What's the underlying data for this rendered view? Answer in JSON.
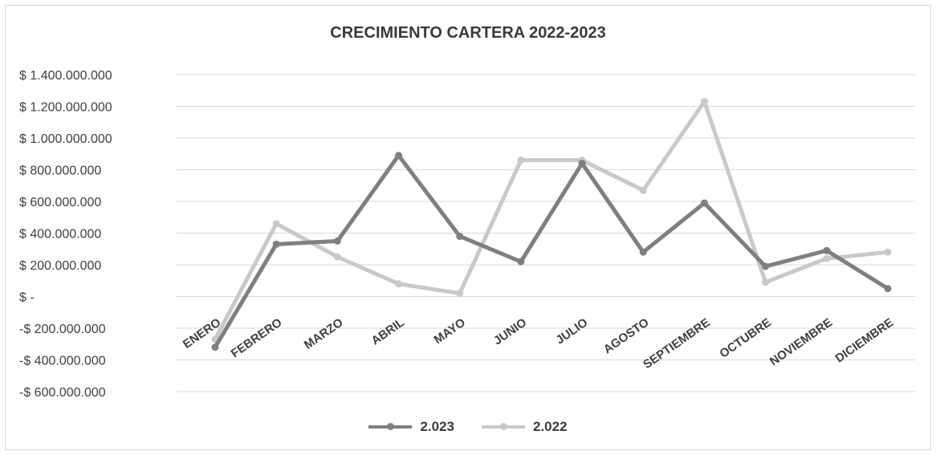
{
  "chart_data": {
    "type": "line",
    "title": "CRECIMIENTO CARTERA 2022-2023",
    "categories": [
      "ENERO",
      "FEBRERO",
      "MARZO",
      "ABRIL",
      "MAYO",
      "JUNIO",
      "JULIO",
      "AGOSTO",
      "SEPTIEMBRE",
      "OCTUBRE",
      "NOVIEMBRE",
      "DICIEMBRE"
    ],
    "y_ticks": [
      {
        "value": 1400000000,
        "label": "$ 1.400.000.000"
      },
      {
        "value": 1200000000,
        "label": "$ 1.200.000.000"
      },
      {
        "value": 1000000000,
        "label": "$ 1.000.000.000"
      },
      {
        "value": 800000000,
        "label": "$ 800.000.000"
      },
      {
        "value": 600000000,
        "label": "$ 600.000.000"
      },
      {
        "value": 400000000,
        "label": "$ 400.000.000"
      },
      {
        "value": 200000000,
        "label": "$ 200.000.000"
      },
      {
        "value": 0,
        "label": "$ -"
      },
      {
        "value": -200000000,
        "label": "-$ 200.000.000"
      },
      {
        "value": -400000000,
        "label": "-$ 400.000.000"
      },
      {
        "value": -600000000,
        "label": "-$ 600.000.000"
      }
    ],
    "ylim": [
      -600000000,
      1400000000
    ],
    "grid": true,
    "legend_position": "bottom",
    "series": [
      {
        "name": "2.023",
        "color": "#7f7f7f",
        "values": [
          -320000000,
          330000000,
          350000000,
          890000000,
          380000000,
          220000000,
          840000000,
          280000000,
          590000000,
          190000000,
          290000000,
          50000000
        ]
      },
      {
        "name": "2.022",
        "color": "#c9c9c9",
        "values": [
          -270000000,
          460000000,
          250000000,
          80000000,
          20000000,
          860000000,
          860000000,
          670000000,
          1230000000,
          90000000,
          240000000,
          280000000
        ]
      }
    ]
  }
}
